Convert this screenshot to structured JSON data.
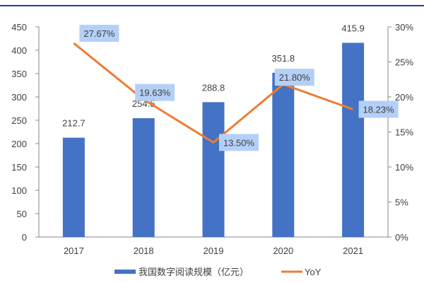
{
  "chart_data": {
    "type": "bar+line",
    "categories": [
      "2017",
      "2018",
      "2019",
      "2020",
      "2021"
    ],
    "series": [
      {
        "name": "我国数字阅读规模（亿元）",
        "type": "bar",
        "axis": "left",
        "values": [
          212.7,
          254.5,
          288.8,
          351.8,
          415.9
        ],
        "labels": [
          "212.7",
          "254.5",
          "288.8",
          "351.8",
          "415.9"
        ],
        "color": "#4472C4"
      },
      {
        "name": "YoY",
        "type": "line",
        "axis": "right",
        "values": [
          27.67,
          19.63,
          13.5,
          21.8,
          18.23
        ],
        "labels": [
          "27.67%",
          "19.63%",
          "13.50%",
          "21.80%",
          "18.23%"
        ],
        "color": "#ED7D31"
      }
    ],
    "left_axis": {
      "ylim": [
        0,
        450
      ],
      "ticks": [
        "0",
        "50",
        "100",
        "150",
        "200",
        "250",
        "300",
        "350",
        "400",
        "450"
      ]
    },
    "right_axis": {
      "ylim": [
        0,
        30
      ],
      "ticks": [
        "0%",
        "5%",
        "10%",
        "15%",
        "20%",
        "25%",
        "30%"
      ]
    },
    "grid": false,
    "legend": "bottom",
    "label_box_color": "#B4D0F8",
    "frame_line_color": "#1F3F99"
  }
}
